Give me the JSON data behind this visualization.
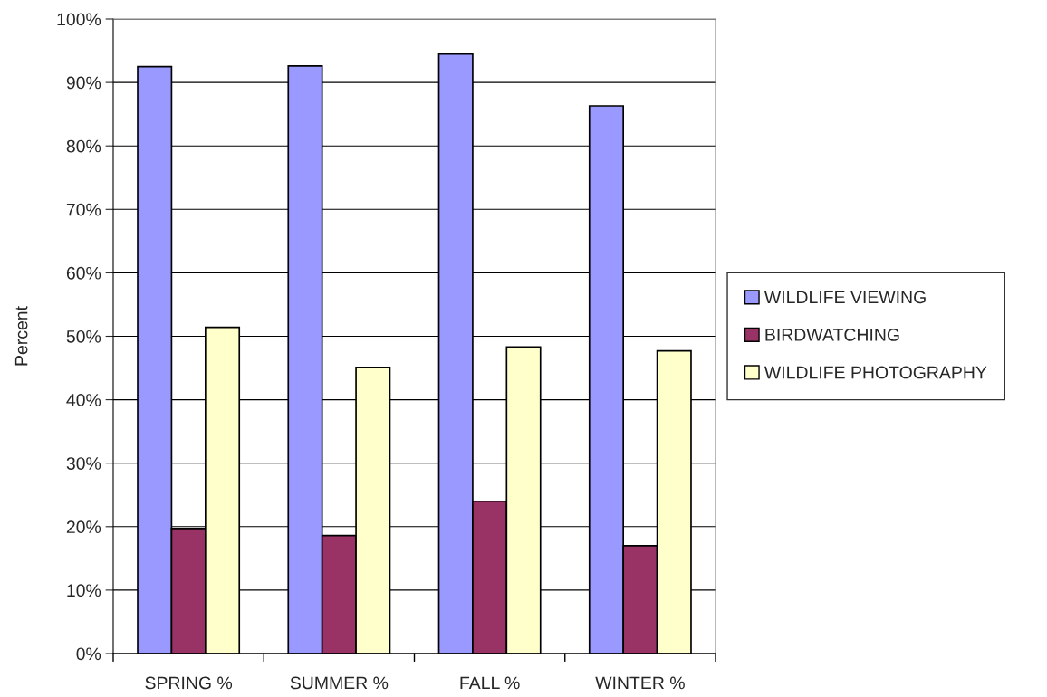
{
  "chart_data": {
    "type": "bar",
    "ylabel": "Percent",
    "categories": [
      "SPRING %",
      "SUMMER %",
      "FALL %",
      "WINTER %"
    ],
    "series": [
      {
        "name": "WILDLIFE VIEWING",
        "color": "#9999ff",
        "values": [
          92.5,
          92.6,
          94.5,
          86.3
        ]
      },
      {
        "name": "BIRDWATCHING",
        "color": "#993366",
        "values": [
          19.7,
          18.6,
          24.0,
          17.0
        ]
      },
      {
        "name": "WILDLIFE PHOTOGRAPHY",
        "color": "#ffffcc",
        "values": [
          51.4,
          45.1,
          48.3,
          47.7
        ]
      }
    ],
    "ylim": [
      0,
      100
    ],
    "yticks": [
      {
        "value": 0,
        "label": "0%"
      },
      {
        "value": 10,
        "label": "10%"
      },
      {
        "value": 20,
        "label": "20%"
      },
      {
        "value": 30,
        "label": "30%"
      },
      {
        "value": 40,
        "label": "40%"
      },
      {
        "value": 50,
        "label": "50%"
      },
      {
        "value": 60,
        "label": "60%"
      },
      {
        "value": 70,
        "label": "70%"
      },
      {
        "value": 80,
        "label": "80%"
      },
      {
        "value": 90,
        "label": "90%"
      },
      {
        "value": 100,
        "label": "100%"
      }
    ],
    "grid": "y",
    "legend": "right"
  }
}
